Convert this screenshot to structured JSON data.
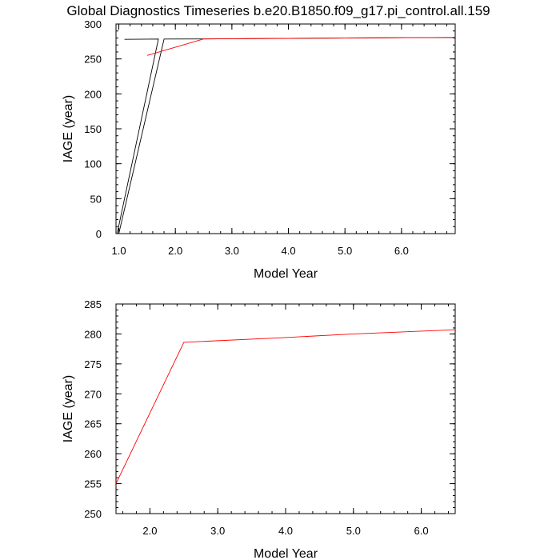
{
  "title": "Global Diagnostics Timeseries b.e20.B1850.f09_g17.pi_control.all.159",
  "chart_data": [
    {
      "type": "line",
      "xlabel": "Model Year",
      "ylabel": "IAGE (year)",
      "xlim": [
        0.95,
        6.95
      ],
      "ylim": [
        0,
        300
      ],
      "xticks": [
        1.0,
        2.0,
        3.0,
        4.0,
        5.0,
        6.0
      ],
      "xtick_labels": [
        "1.0",
        "2.0",
        "3.0",
        "4.0",
        "5.0",
        "6.0"
      ],
      "yticks": [
        0,
        50,
        100,
        150,
        200,
        250,
        300
      ],
      "ytick_labels": [
        "0",
        "50",
        "100",
        "150",
        "200",
        "250",
        "300"
      ],
      "series": [
        {
          "color": "#000000",
          "points": [
            [
              1.0,
              0
            ],
            [
              1.8,
              278.5
            ],
            [
              2.5,
              278.6
            ],
            [
              4.0,
              279.5
            ],
            [
              5.0,
              280.0
            ],
            [
              6.95,
              280.8
            ]
          ]
        },
        {
          "color": "#000000",
          "points": [
            [
              1.1,
              278.0
            ],
            [
              1.7,
              278.5
            ],
            [
              0.97,
              0
            ]
          ]
        },
        {
          "color": "#ff0000",
          "points": [
            [
              1.5,
              255
            ],
            [
              2.5,
              278.6
            ],
            [
              4.0,
              279.4
            ],
            [
              5.0,
              280.0
            ],
            [
              6.5,
              280.7
            ],
            [
              6.95,
              280.8
            ]
          ]
        }
      ]
    },
    {
      "type": "line",
      "xlabel": "Model Year",
      "ylabel": "IAGE (year)",
      "xlim": [
        1.5,
        6.5
      ],
      "ylim": [
        250,
        285
      ],
      "xticks": [
        2.0,
        3.0,
        4.0,
        5.0,
        6.0
      ],
      "xtick_labels": [
        "2.0",
        "3.0",
        "4.0",
        "5.0",
        "6.0"
      ],
      "yticks": [
        250,
        255,
        260,
        265,
        270,
        275,
        280,
        285
      ],
      "ytick_labels": [
        "250",
        "255",
        "260",
        "265",
        "270",
        "275",
        "280",
        "285"
      ],
      "series": [
        {
          "color": "#ff0000",
          "points": [
            [
              1.5,
              255
            ],
            [
              2.5,
              278.6
            ],
            [
              4.0,
              279.4
            ],
            [
              5.0,
              280.0
            ],
            [
              6.5,
              280.7
            ]
          ]
        }
      ]
    }
  ]
}
